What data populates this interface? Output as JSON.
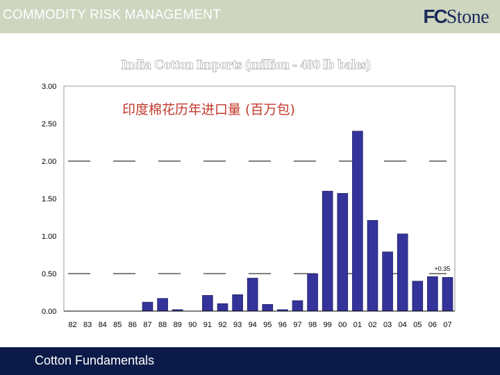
{
  "header": {
    "title": "COMMODITY RISK MANAGEMENT",
    "logo_fc": "FC",
    "logo_stone": "Stone"
  },
  "footer": {
    "title": "Cotton Fundamentals"
  },
  "colors": {
    "bar": "#333399",
    "bar_edge": "#1a1a55",
    "header_band": "#cfd6c0",
    "footer_band": "#0b1a48"
  },
  "chart_data": {
    "type": "bar",
    "title": "India Cotton Imports (million - 480 lb bales)",
    "subtitle": "印度棉花历年进口量 (百万包)",
    "categories": [
      "82",
      "83",
      "84",
      "85",
      "86",
      "87",
      "88",
      "89",
      "90",
      "91",
      "92",
      "93",
      "94",
      "95",
      "96",
      "97",
      "98",
      "99",
      "00",
      "01",
      "02",
      "03",
      "04",
      "05",
      "06",
      "07"
    ],
    "values": [
      0,
      0,
      0,
      0,
      0,
      0.12,
      0.17,
      0.02,
      0,
      0.21,
      0.1,
      0.22,
      0.44,
      0.09,
      0.02,
      0.14,
      0.5,
      1.6,
      1.57,
      2.4,
      1.21,
      0.79,
      1.03,
      0.4,
      0.46,
      0.45
    ],
    "y_ticks": [
      "0.00",
      "0.50",
      "1.00",
      "1.50",
      "2.00",
      "2.50",
      "3.00"
    ],
    "ylim": [
      0,
      3
    ],
    "grid": false,
    "reference_lines": [
      0.5,
      2.0
    ],
    "annotation": {
      "text": "+0.35",
      "category": "06"
    }
  }
}
